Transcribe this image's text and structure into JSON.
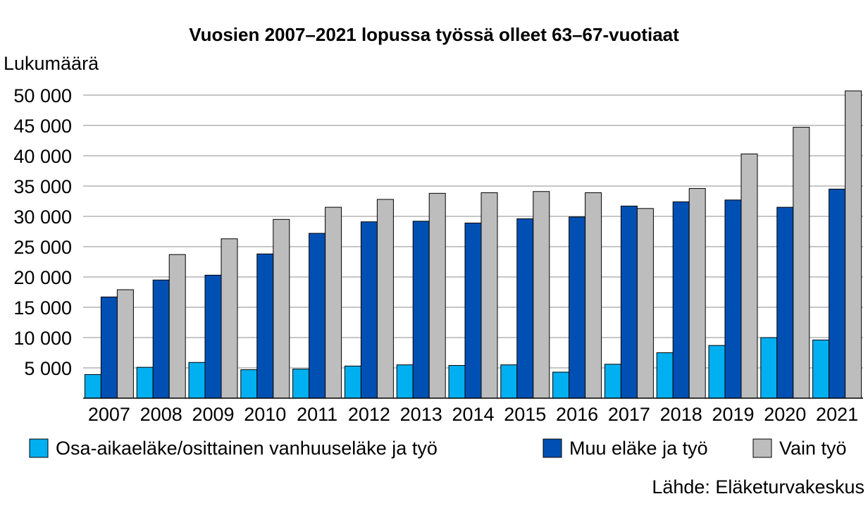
{
  "chart_data": {
    "type": "bar",
    "title": "Vuosien 2007–2021 lopussa työssä olleet 63–67-vuotiaat",
    "ylabel": "Lukumäärä",
    "xlabel": "",
    "ylim": [
      0,
      50000
    ],
    "yticks": [
      0,
      5000,
      10000,
      15000,
      20000,
      25000,
      30000,
      35000,
      40000,
      45000,
      50000
    ],
    "ytick_labels": [
      "",
      "5 000",
      "10 000",
      "15 000",
      "20 000",
      "25 000",
      "30 000",
      "35 000",
      "40 000",
      "45 000",
      "50 000"
    ],
    "grid": true,
    "legend_position": "bottom",
    "categories": [
      "2007",
      "2008",
      "2009",
      "2010",
      "2011",
      "2012",
      "2013",
      "2014",
      "2015",
      "2016",
      "2017",
      "2018",
      "2019",
      "2020",
      "2021"
    ],
    "series": [
      {
        "name": "Osa-aikaeläke/osittainen vanhuuseläke ja työ",
        "color": "#00B0F0",
        "values": [
          3900,
          5100,
          5900,
          4700,
          4800,
          5300,
          5500,
          5400,
          5500,
          4300,
          5600,
          7500,
          8700,
          10000,
          9600
        ]
      },
      {
        "name": "Muu eläke ja työ",
        "color": "#0050B4",
        "values": [
          16700,
          19500,
          20300,
          23800,
          27200,
          29100,
          29200,
          28900,
          29600,
          29900,
          31700,
          32400,
          32700,
          31500,
          34500
        ]
      },
      {
        "name": "Vain työ",
        "color": "#BDBDBD",
        "values": [
          17900,
          23700,
          26300,
          29500,
          31500,
          32800,
          33800,
          33900,
          34100,
          33900,
          31300,
          34600,
          40300,
          44700,
          50700
        ]
      }
    ],
    "source": "Lähde: Eläketurvakeskus"
  }
}
